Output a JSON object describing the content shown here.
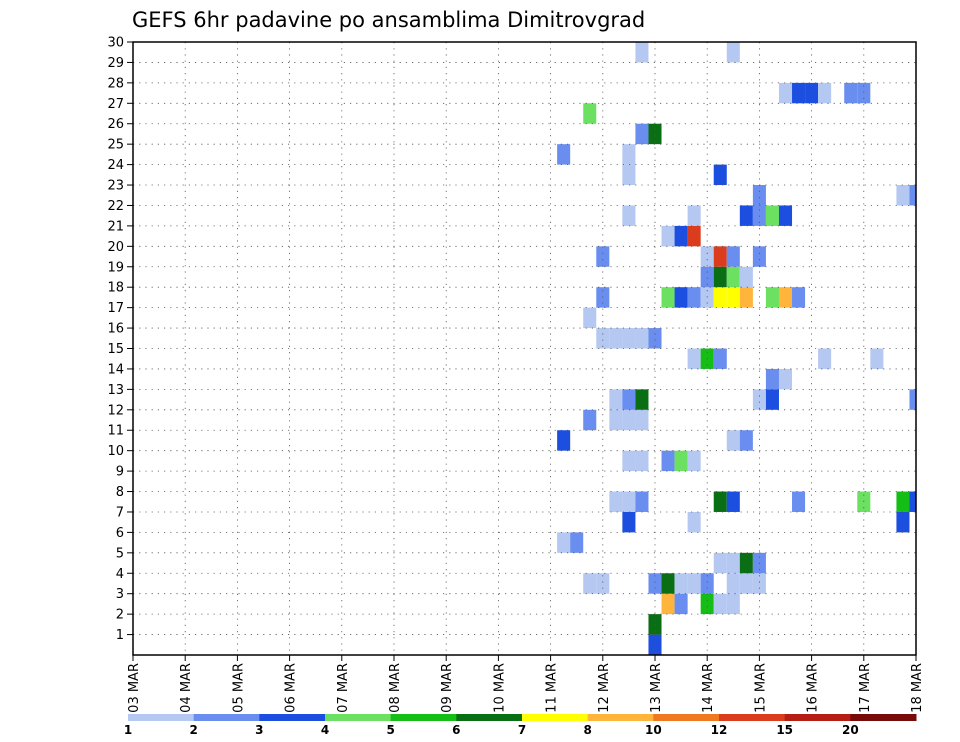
{
  "chart_data": {
    "type": "heatmap",
    "title": "GEFS 6hr padavine po ansamblima Dimitrovgrad",
    "x_tick_labels": [
      "03 MAR",
      "04 MAR",
      "05 MAR",
      "06 MAR",
      "07 MAR",
      "08 MAR",
      "09 MAR",
      "10 MAR",
      "11 MAR",
      "12 MAR",
      "13 MAR",
      "14 MAR",
      "15 MAR",
      "16 MAR",
      "17 MAR",
      "18 MAR"
    ],
    "x_range": [
      0,
      60
    ],
    "x_unit": "6-hour steps from 03 MAR 00z",
    "y_tick_labels": [
      "1",
      "2",
      "3",
      "4",
      "5",
      "6",
      "7",
      "8",
      "9",
      "10",
      "11",
      "12",
      "13",
      "14",
      "15",
      "16",
      "17",
      "18",
      "19",
      "20",
      "21",
      "22",
      "23",
      "24",
      "25",
      "26",
      "27",
      "28",
      "29",
      "30"
    ],
    "y_range": [
      0,
      30
    ],
    "grid": "dotted",
    "legend": {
      "position": "bottom",
      "labels": [
        "1",
        "2",
        "3",
        "4",
        "5",
        "6",
        "7",
        "8",
        "10",
        "12",
        "15",
        "20"
      ],
      "colors": [
        "#b4c8f2",
        "#6a8ef0",
        "#1c4ee0",
        "#6ce060",
        "#14be14",
        "#0a6e14",
        "#ffff00",
        "#ffb43c",
        "#f0781e",
        "#dc3c1e",
        "#b41e14",
        "#780a0a"
      ]
    },
    "cells": [
      [
        40,
        0,
        3
      ],
      [
        40,
        1,
        6
      ],
      [
        41,
        2,
        8
      ],
      [
        42,
        2,
        2
      ],
      [
        44,
        2,
        5
      ],
      [
        45,
        2,
        1
      ],
      [
        46,
        2,
        1
      ],
      [
        40,
        3,
        2
      ],
      [
        41,
        3,
        6
      ],
      [
        42,
        3,
        1
      ],
      [
        43,
        3,
        1
      ],
      [
        44,
        3,
        2
      ],
      [
        46,
        3,
        1
      ],
      [
        47,
        3,
        1
      ],
      [
        48,
        3,
        1
      ],
      [
        35,
        3,
        1
      ],
      [
        36,
        3,
        1
      ],
      [
        45,
        4,
        1
      ],
      [
        46,
        4,
        1
      ],
      [
        47,
        4,
        6
      ],
      [
        48,
        4,
        2
      ],
      [
        33,
        5,
        1
      ],
      [
        34,
        5,
        2
      ],
      [
        38,
        6,
        3
      ],
      [
        43,
        6,
        1
      ],
      [
        59,
        6,
        3
      ],
      [
        37,
        7,
        1
      ],
      [
        38,
        7,
        1
      ],
      [
        39,
        7,
        2
      ],
      [
        45,
        7,
        6
      ],
      [
        46,
        7,
        3
      ],
      [
        51,
        7,
        2
      ],
      [
        56,
        7,
        4
      ],
      [
        59,
        7,
        5
      ],
      [
        60,
        7,
        3
      ],
      [
        38,
        9,
        1
      ],
      [
        39,
        9,
        1
      ],
      [
        41,
        9,
        2
      ],
      [
        42,
        9,
        4
      ],
      [
        43,
        9,
        1
      ],
      [
        33,
        10,
        3
      ],
      [
        46,
        10,
        1
      ],
      [
        47,
        10,
        2
      ],
      [
        35,
        11,
        2
      ],
      [
        37,
        11,
        1
      ],
      [
        38,
        11,
        1
      ],
      [
        39,
        11,
        1
      ],
      [
        37,
        12,
        1
      ],
      [
        38,
        12,
        2
      ],
      [
        39,
        12,
        6
      ],
      [
        48,
        12,
        1
      ],
      [
        49,
        12,
        3
      ],
      [
        60,
        12,
        2
      ],
      [
        49,
        13,
        2
      ],
      [
        50,
        13,
        1
      ],
      [
        43,
        14,
        1
      ],
      [
        44,
        14,
        5
      ],
      [
        45,
        14,
        2
      ],
      [
        53,
        14,
        1
      ],
      [
        57,
        14,
        1
      ],
      [
        36,
        15,
        1
      ],
      [
        37,
        15,
        1
      ],
      [
        38,
        15,
        1
      ],
      [
        39,
        15,
        1
      ],
      [
        40,
        15,
        2
      ],
      [
        35,
        16,
        1
      ],
      [
        36,
        17,
        2
      ],
      [
        41,
        17,
        4
      ],
      [
        42,
        17,
        3
      ],
      [
        43,
        17,
        2
      ],
      [
        44,
        17,
        1
      ],
      [
        45,
        17,
        7
      ],
      [
        46,
        17,
        7
      ],
      [
        47,
        17,
        8
      ],
      [
        49,
        17,
        4
      ],
      [
        50,
        17,
        8
      ],
      [
        51,
        17,
        2
      ],
      [
        44,
        18,
        2
      ],
      [
        45,
        18,
        6
      ],
      [
        46,
        18,
        4
      ],
      [
        47,
        18,
        1
      ],
      [
        36,
        19,
        2
      ],
      [
        44,
        19,
        1
      ],
      [
        45,
        19,
        10
      ],
      [
        46,
        19,
        2
      ],
      [
        48,
        19,
        2
      ],
      [
        41,
        20,
        1
      ],
      [
        42,
        20,
        3
      ],
      [
        43,
        20,
        10
      ],
      [
        38,
        21,
        1
      ],
      [
        43,
        21,
        1
      ],
      [
        47,
        21,
        3
      ],
      [
        48,
        21,
        2
      ],
      [
        49,
        21,
        4
      ],
      [
        50,
        21,
        3
      ],
      [
        48,
        22,
        2
      ],
      [
        59,
        22,
        1
      ],
      [
        60,
        22,
        2
      ],
      [
        45,
        23,
        3
      ],
      [
        38,
        23,
        1
      ],
      [
        38,
        24,
        1
      ],
      [
        33,
        24,
        2
      ],
      [
        39,
        25,
        2
      ],
      [
        40,
        25,
        6
      ],
      [
        35,
        26,
        4
      ],
      [
        50,
        27,
        1
      ],
      [
        51,
        27,
        3
      ],
      [
        52,
        27,
        3
      ],
      [
        53,
        27,
        1
      ],
      [
        55,
        27,
        2
      ],
      [
        56,
        27,
        2
      ],
      [
        39,
        29,
        1
      ],
      [
        46,
        29,
        1
      ]
    ]
  }
}
